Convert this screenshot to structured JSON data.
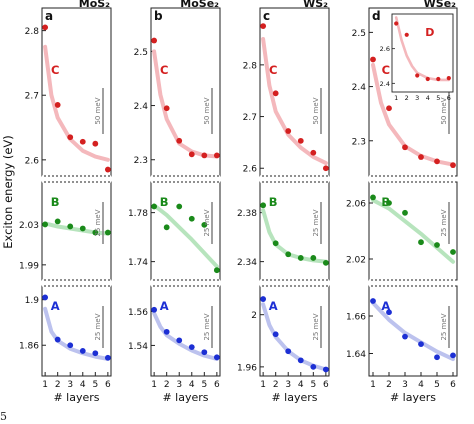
{
  "figure": {
    "ylabel": "Exciton energy (eV)",
    "xlabel": "# layers",
    "caption_fragment": "5"
  },
  "chart_data": [
    {
      "type": "scatter",
      "panel_letter": "a",
      "title": "MoS₂",
      "x_ticks": [
        "1",
        "2",
        "3",
        "4",
        "5",
        "6"
      ],
      "rows": [
        {
          "label": "C",
          "color": "#d42020",
          "fit_color": "#f4b8bc",
          "ylim": [
            2.575,
            2.835
          ],
          "yticks": [
            "2.6",
            "2.7",
            "2.8"
          ],
          "ytick_values": [
            2.6,
            2.7,
            2.8
          ],
          "scale_text": "50 meV",
          "points": [
            [
              1,
              2.805
            ],
            [
              2,
              2.685
            ],
            [
              3,
              2.635
            ],
            [
              4,
              2.628
            ],
            [
              5,
              2.625
            ],
            [
              6,
              2.585
            ]
          ],
          "fit": [
            [
              1,
              2.775
            ],
            [
              1.5,
              2.7
            ],
            [
              2,
              2.665
            ],
            [
              3,
              2.632
            ],
            [
              4,
              2.614
            ],
            [
              5,
              2.605
            ],
            [
              6,
              2.6
            ]
          ]
        },
        {
          "label": "B",
          "color": "#1a8a1a",
          "fit_color": "#b7e4bd",
          "ylim": [
            1.975,
            2.072
          ],
          "yticks": [
            "1.99",
            "2.03"
          ],
          "ytick_values": [
            1.99,
            2.03
          ],
          "scale_text": "25 meV",
          "points": [
            [
              1,
              2.03
            ],
            [
              2,
              2.033
            ],
            [
              3,
              2.028
            ],
            [
              4,
              2.026
            ],
            [
              5,
              2.022
            ],
            [
              6,
              2.022
            ]
          ],
          "fit": [
            [
              1,
              2.031
            ],
            [
              2,
              2.028
            ],
            [
              3,
              2.026
            ],
            [
              4,
              2.024
            ],
            [
              5,
              2.022
            ],
            [
              6,
              2.021
            ]
          ]
        },
        {
          "label": "A",
          "color": "#1c2fd4",
          "fit_color": "#bcc2ee",
          "ylim": [
            1.833,
            1.912
          ],
          "yticks": [
            "1.86",
            "1.9"
          ],
          "ytick_values": [
            1.86,
            1.9
          ],
          "scale_text": "25 meV",
          "points": [
            [
              1,
              1.902
            ],
            [
              2,
              1.865
            ],
            [
              3,
              1.86
            ],
            [
              4,
              1.855
            ],
            [
              5,
              1.853
            ],
            [
              6,
              1.849
            ]
          ],
          "fit": [
            [
              1,
              1.892
            ],
            [
              1.5,
              1.872
            ],
            [
              2,
              1.864
            ],
            [
              3,
              1.857
            ],
            [
              4,
              1.853
            ],
            [
              5,
              1.85
            ],
            [
              6,
              1.848
            ]
          ]
        }
      ]
    },
    {
      "type": "scatter",
      "panel_letter": "b",
      "title": "MoSe₂",
      "x_ticks": [
        "1",
        "2",
        "3",
        "4",
        "5",
        "6"
      ],
      "rows": [
        {
          "label": "C",
          "color": "#d42020",
          "fit_color": "#f4b8bc",
          "ylim": [
            2.27,
            2.58
          ],
          "yticks": [
            "2.3",
            "2.4",
            "2.5"
          ],
          "ytick_values": [
            2.3,
            2.4,
            2.5
          ],
          "scale_text": "50 meV",
          "points": [
            [
              1,
              2.52
            ],
            [
              2,
              2.395
            ],
            [
              3,
              2.335
            ],
            [
              4,
              2.31
            ],
            [
              5,
              2.308
            ],
            [
              6,
              2.308
            ]
          ],
          "fit": [
            [
              1,
              2.5
            ],
            [
              1.5,
              2.42
            ],
            [
              2,
              2.375
            ],
            [
              3,
              2.33
            ],
            [
              4,
              2.315
            ],
            [
              5,
              2.308
            ],
            [
              6,
              2.306
            ]
          ]
        },
        {
          "label": "B",
          "color": "#1a8a1a",
          "fit_color": "#b7e4bd",
          "ylim": [
            1.725,
            1.805
          ],
          "yticks": [
            "1.74",
            "1.78"
          ],
          "ytick_values": [
            1.74,
            1.78
          ],
          "scale_text": "25 meV",
          "points": [
            [
              1,
              1.785
            ],
            [
              2,
              1.768
            ],
            [
              3,
              1.785
            ],
            [
              4,
              1.775
            ],
            [
              5,
              1.77
            ],
            [
              6,
              1.733
            ]
          ],
          "fit": [
            [
              1,
              1.786
            ],
            [
              2,
              1.778
            ],
            [
              3,
              1.768
            ],
            [
              4,
              1.758
            ],
            [
              5,
              1.747
            ],
            [
              6,
              1.736
            ]
          ]
        },
        {
          "label": "A",
          "color": "#1c2fd4",
          "fit_color": "#bcc2ee",
          "ylim": [
            1.522,
            1.575
          ],
          "yticks": [
            "1.54",
            "1.56"
          ],
          "ytick_values": [
            1.54,
            1.56
          ],
          "scale_text": "25 meV",
          "points": [
            [
              1,
              1.561
            ],
            [
              2,
              1.548
            ],
            [
              3,
              1.543
            ],
            [
              4,
              1.539
            ],
            [
              5,
              1.536
            ],
            [
              6,
              1.533
            ]
          ],
          "fit": [
            [
              1,
              1.559
            ],
            [
              1.5,
              1.551
            ],
            [
              2,
              1.546
            ],
            [
              3,
              1.541
            ],
            [
              4,
              1.537
            ],
            [
              5,
              1.534
            ],
            [
              6,
              1.532
            ]
          ]
        }
      ]
    },
    {
      "type": "scatter",
      "panel_letter": "c",
      "title": "WS₂",
      "x_ticks": [
        "1",
        "2",
        "3",
        "4",
        "5",
        "6"
      ],
      "rows": [
        {
          "label": "C",
          "color": "#d42020",
          "fit_color": "#f4b8bc",
          "ylim": [
            2.585,
            2.91
          ],
          "yticks": [
            "2.6",
            "2.7",
            "2.8"
          ],
          "ytick_values": [
            2.6,
            2.7,
            2.8
          ],
          "scale_text": "50 meV",
          "points": [
            [
              1,
              2.875
            ],
            [
              2,
              2.745
            ],
            [
              3,
              2.672
            ],
            [
              4,
              2.653
            ],
            [
              5,
              2.63
            ],
            [
              6,
              2.6
            ]
          ],
          "fit": [
            [
              1,
              2.85
            ],
            [
              1.5,
              2.76
            ],
            [
              2,
              2.71
            ],
            [
              3,
              2.665
            ],
            [
              4,
              2.64
            ],
            [
              5,
              2.622
            ],
            [
              6,
              2.61
            ]
          ]
        },
        {
          "label": "B",
          "color": "#1a8a1a",
          "fit_color": "#b7e4bd",
          "ylim": [
            2.325,
            2.405
          ],
          "yticks": [
            "2.34",
            "2.38"
          ],
          "ytick_values": [
            2.34,
            2.38
          ],
          "scale_text": "25 meV",
          "points": [
            [
              1,
              2.386
            ],
            [
              2,
              2.355
            ],
            [
              3,
              2.346
            ],
            [
              4,
              2.343
            ],
            [
              5,
              2.343
            ],
            [
              6,
              2.339
            ]
          ],
          "fit": [
            [
              1,
              2.382
            ],
            [
              1.5,
              2.364
            ],
            [
              2,
              2.354
            ],
            [
              3,
              2.346
            ],
            [
              4,
              2.343
            ],
            [
              5,
              2.341
            ],
            [
              6,
              2.34
            ]
          ]
        },
        {
          "label": "A",
          "color": "#1c2fd4",
          "fit_color": "#bcc2ee",
          "ylim": [
            1.953,
            2.022
          ],
          "yticks": [
            "1.96",
            "2"
          ],
          "ytick_values": [
            1.96,
            2.0
          ],
          "scale_text": "25 meV",
          "points": [
            [
              1,
              2.012
            ],
            [
              2,
              1.985
            ],
            [
              3,
              1.972
            ],
            [
              4,
              1.965
            ],
            [
              5,
              1.96
            ],
            [
              6,
              1.958
            ]
          ],
          "fit": [
            [
              1,
              2.008
            ],
            [
              1.5,
              1.992
            ],
            [
              2,
              1.983
            ],
            [
              3,
              1.972
            ],
            [
              4,
              1.965
            ],
            [
              5,
              1.961
            ],
            [
              6,
              1.958
            ]
          ]
        }
      ]
    },
    {
      "type": "scatter",
      "panel_letter": "d",
      "title": "WSe₂",
      "x_ticks": [
        "1",
        "2",
        "3",
        "4",
        "5",
        "6"
      ],
      "rows": [
        {
          "label": "C",
          "color": "#d42020",
          "fit_color": "#f4b8bc",
          "ylim": [
            2.235,
            2.545
          ],
          "yticks": [
            "2.3",
            "2.4",
            "2.5"
          ],
          "ytick_values": [
            2.3,
            2.4,
            2.5
          ],
          "scale_text": "50 meV",
          "points": [
            [
              1,
              2.45
            ],
            [
              2,
              2.36
            ],
            [
              3,
              2.288
            ],
            [
              4,
              2.27
            ],
            [
              5,
              2.262
            ],
            [
              6,
              2.255
            ]
          ],
          "fit": [
            [
              1,
              2.44
            ],
            [
              1.5,
              2.37
            ],
            [
              2,
              2.33
            ],
            [
              3,
              2.29
            ],
            [
              4,
              2.272
            ],
            [
              5,
              2.262
            ],
            [
              6,
              2.256
            ]
          ]
        },
        {
          "label": "B",
          "color": "#1a8a1a",
          "fit_color": "#b7e4bd",
          "ylim": [
            2.005,
            2.075
          ],
          "yticks": [
            "2.02",
            "2.06"
          ],
          "ytick_values": [
            2.02,
            2.06
          ],
          "scale_text": "25 meV",
          "points": [
            [
              1,
              2.064
            ],
            [
              2,
              2.06
            ],
            [
              3,
              2.053
            ],
            [
              4,
              2.032
            ],
            [
              5,
              2.03
            ],
            [
              6,
              2.025
            ]
          ],
          "fit": [
            [
              1,
              2.062
            ],
            [
              2,
              2.056
            ],
            [
              3,
              2.047
            ],
            [
              4,
              2.038
            ],
            [
              5,
              2.028
            ],
            [
              6,
              2.018
            ]
          ]
        },
        {
          "label": "A",
          "color": "#1c2fd4",
          "fit_color": "#bcc2ee",
          "ylim": [
            1.628,
            1.676
          ],
          "yticks": [
            "1.64",
            "1.66"
          ],
          "ytick_values": [
            1.64,
            1.66
          ],
          "scale_text": "25 meV",
          "points": [
            [
              1,
              1.668
            ],
            [
              2,
              1.662
            ],
            [
              3,
              1.649
            ],
            [
              4,
              1.645
            ],
            [
              5,
              1.638
            ],
            [
              6,
              1.639
            ]
          ],
          "fit": [
            [
              1,
              1.667
            ],
            [
              2,
              1.658
            ],
            [
              3,
              1.651
            ],
            [
              4,
              1.646
            ],
            [
              5,
              1.641
            ],
            [
              6,
              1.637
            ]
          ]
        }
      ],
      "inset": {
        "label": "D",
        "color": "#d42020",
        "fit_color": "#f4b8bc",
        "ylim": [
          2.35,
          2.8
        ],
        "yticks": [
          "2.4",
          "2.6"
        ],
        "ytick_values": [
          2.4,
          2.6
        ],
        "x_ticks": [
          "1",
          "2",
          "3",
          "4",
          "5",
          "6"
        ],
        "points": [
          [
            1,
            2.745
          ],
          [
            2,
            2.68
          ],
          [
            3,
            2.445
          ],
          [
            4,
            2.425
          ],
          [
            5,
            2.425
          ],
          [
            6,
            2.43
          ]
        ],
        "fit": [
          [
            1,
            2.78
          ],
          [
            1.5,
            2.65
          ],
          [
            2,
            2.56
          ],
          [
            2.5,
            2.5
          ],
          [
            3,
            2.46
          ],
          [
            4,
            2.43
          ],
          [
            5,
            2.42
          ],
          [
            6,
            2.42
          ]
        ]
      }
    }
  ]
}
